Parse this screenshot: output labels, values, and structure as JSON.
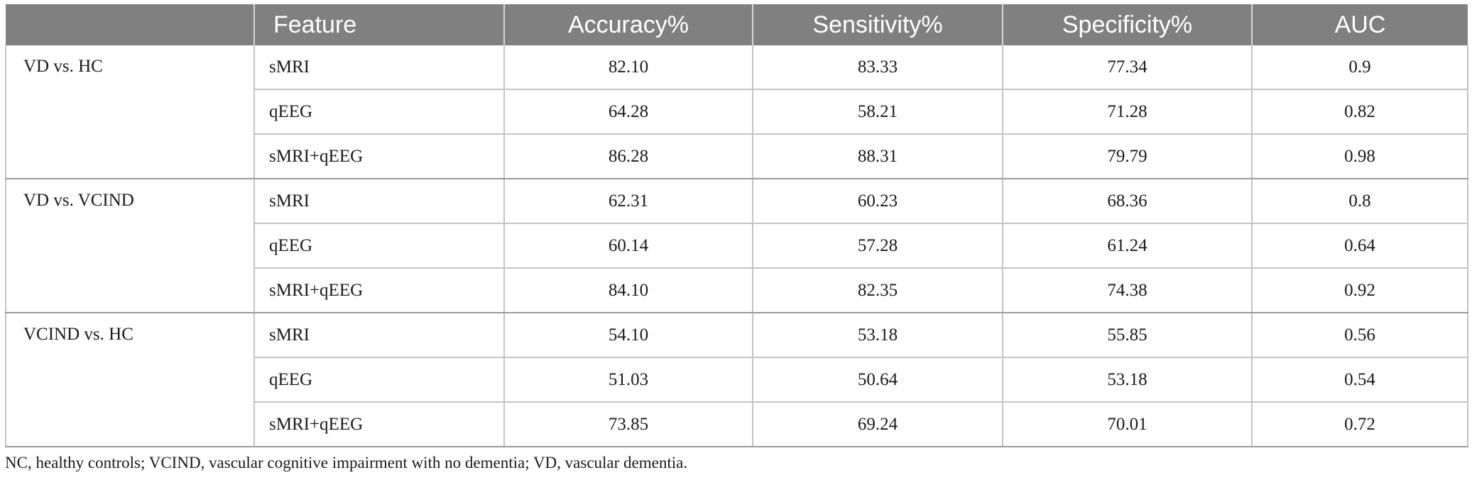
{
  "table": {
    "headers": [
      "",
      "Feature",
      "Accuracy%",
      "Sensitivity%",
      "Specificity%",
      "AUC"
    ],
    "groups": [
      {
        "label": "VD vs. HC",
        "rows": [
          {
            "feature": "sMRI",
            "accuracy": "82.10",
            "sensitivity": "83.33",
            "specificity": "77.34",
            "auc": "0.9"
          },
          {
            "feature": "qEEG",
            "accuracy": "64.28",
            "sensitivity": "58.21",
            "specificity": "71.28",
            "auc": "0.82"
          },
          {
            "feature": "sMRI+qEEG",
            "accuracy": "86.28",
            "sensitivity": "88.31",
            "specificity": "79.79",
            "auc": "0.98"
          }
        ]
      },
      {
        "label": "VD vs. VCIND",
        "rows": [
          {
            "feature": "sMRI",
            "accuracy": "62.31",
            "sensitivity": "60.23",
            "specificity": "68.36",
            "auc": "0.8"
          },
          {
            "feature": "qEEG",
            "accuracy": "60.14",
            "sensitivity": "57.28",
            "specificity": "61.24",
            "auc": "0.64"
          },
          {
            "feature": "sMRI+qEEG",
            "accuracy": "84.10",
            "sensitivity": "82.35",
            "specificity": "74.38",
            "auc": "0.92"
          }
        ]
      },
      {
        "label": "VCIND vs. HC",
        "rows": [
          {
            "feature": "sMRI",
            "accuracy": "54.10",
            "sensitivity": "53.18",
            "specificity": "55.85",
            "auc": "0.56"
          },
          {
            "feature": "qEEG",
            "accuracy": "51.03",
            "sensitivity": "50.64",
            "specificity": "53.18",
            "auc": "0.54"
          },
          {
            "feature": "sMRI+qEEG",
            "accuracy": "73.85",
            "sensitivity": "69.24",
            "specificity": "70.01",
            "auc": "0.72"
          }
        ]
      }
    ]
  },
  "footnote": "NC, healthy controls; VCIND, vascular cognitive impairment with no dementia; VD, vascular dementia.",
  "colors": {
    "header_bg": "#808080",
    "header_text": "#ffffff",
    "border": "#c4c4c4"
  }
}
